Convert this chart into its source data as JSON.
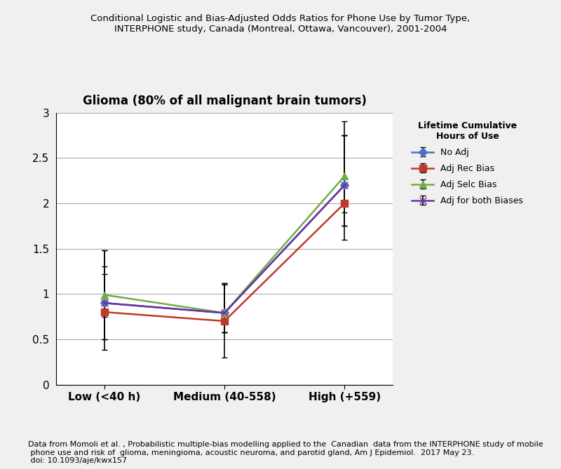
{
  "title_main": "Conditional Logistic and Bias-Adjusted Odds Ratios for Phone Use by Tumor Type,\nINTERPHONE study, Canada (Montreal, Ottawa, Vancouver), 2001-2004",
  "subtitle": "Glioma (80% of all malignant brain tumors)",
  "xlabel_categories": [
    "Low (<40 h)",
    "Medium (40-558)",
    "High (+559)"
  ],
  "ylim": [
    0,
    3.0
  ],
  "yticks": [
    0,
    0.5,
    1.0,
    1.5,
    2.0,
    2.5,
    3.0
  ],
  "legend_title": "Lifetime Cumulative\nHours of Use",
  "footnote": "Data from Momoli et al. , Probabilistic multiple-bias modelling applied to the  Canadian  data from the INTERPHONE study of mobile\n phone use and risk of  glioma, meningioma, acoustic neuroma, and parotid gland, Am J Epidemiol.  2017 May 23.\n doi: 10.1093/aje/kwx157",
  "series": [
    {
      "label": "No Adj",
      "color": "#4472C4",
      "marker": "D",
      "markersize": 6,
      "values": [
        0.9,
        0.79,
        2.2
      ],
      "ci_low": [
        0.5,
        0.58,
        1.75
      ],
      "ci_high": [
        1.48,
        1.12,
        2.75
      ]
    },
    {
      "label": "Adj Rec Bias",
      "color": "#C0392B",
      "marker": "s",
      "markersize": 7,
      "values": [
        0.8,
        0.7,
        2.0
      ],
      "ci_low": [
        0.38,
        0.3,
        1.6
      ],
      "ci_high": [
        1.22,
        1.1,
        2.75
      ]
    },
    {
      "label": "Adj Selc Bias",
      "color": "#70AD47",
      "marker": "^",
      "markersize": 7,
      "values": [
        0.99,
        0.79,
        2.3
      ],
      "ci_low": [
        0.75,
        0.58,
        1.9
      ],
      "ci_high": [
        1.3,
        1.12,
        2.9
      ]
    },
    {
      "label": "Adj for both Biases",
      "color": "#7030A0",
      "marker": "x",
      "markersize": 7,
      "values": [
        0.9,
        0.79,
        2.2
      ],
      "ci_low": [
        0.5,
        0.58,
        1.75
      ],
      "ci_high": [
        1.48,
        1.12,
        2.75
      ]
    }
  ],
  "background_color": "#F0F0F0",
  "plot_bg_color": "#FFFFFF",
  "grid_color": "#AAAAAA",
  "title_fontsize": 9.5,
  "subtitle_fontsize": 12,
  "tick_fontsize": 11,
  "legend_title_fontsize": 9,
  "legend_fontsize": 9,
  "footnote_fontsize": 8
}
